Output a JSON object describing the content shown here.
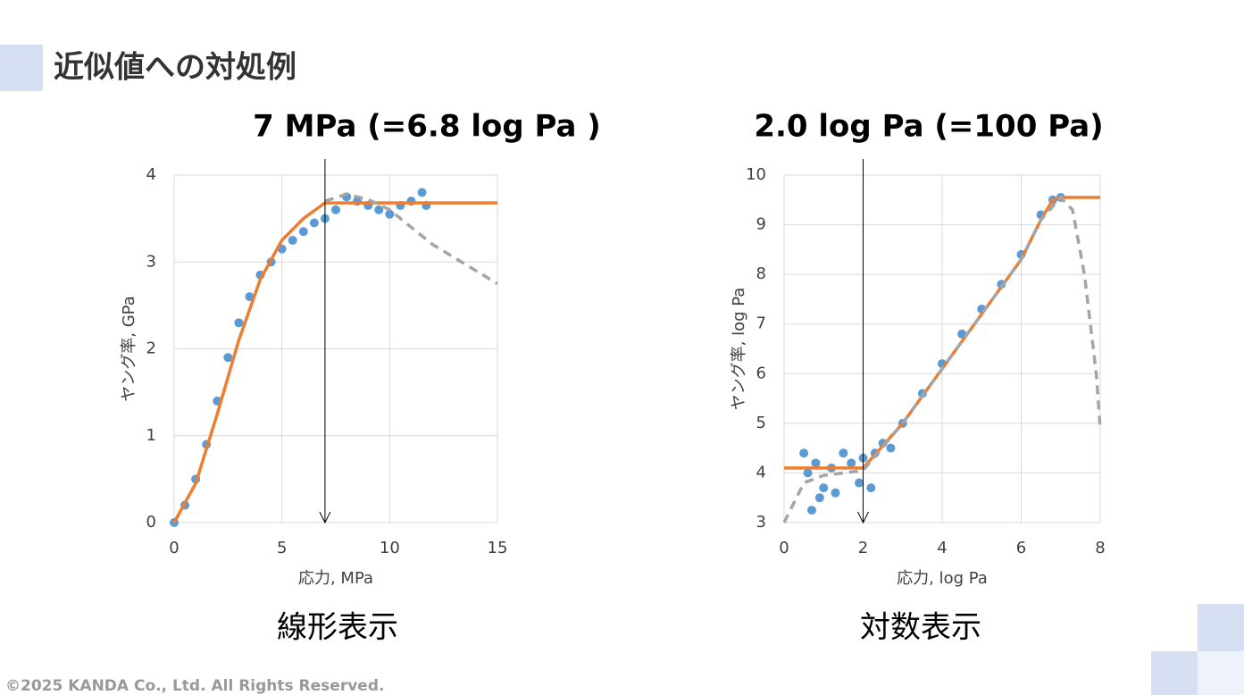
{
  "title": "近似値への対処例",
  "footer": "©2025 KANDA Co., Ltd. All Rights Reserved.",
  "chart_data": [
    {
      "type": "scatter",
      "title": "7 MPa (=6.8 log Pa )",
      "caption": "線形表示",
      "x_label": "応力, MPa",
      "y_label": "ヤング率, GPa",
      "xlim": [
        0,
        15
      ],
      "ylim": [
        0,
        4
      ],
      "xticks": [
        0,
        5,
        10,
        15
      ],
      "yticks": [
        0,
        1,
        2,
        3,
        4
      ],
      "grid": true,
      "vline_x": 7,
      "series": [
        {
          "style": "points",
          "color": "#5b9bd5",
          "x": [
            0,
            0.5,
            1,
            1.5,
            2,
            2.5,
            3,
            3.5,
            4,
            4.5,
            5,
            5.5,
            6,
            6.5,
            7,
            7.5,
            8,
            8.5,
            9,
            9.5,
            10,
            10.5,
            11,
            11.5,
            11.7
          ],
          "values": [
            0,
            0.2,
            0.5,
            0.9,
            1.4,
            1.9,
            2.3,
            2.6,
            2.85,
            3.0,
            3.15,
            3.25,
            3.35,
            3.45,
            3.5,
            3.6,
            3.75,
            3.7,
            3.65,
            3.6,
            3.55,
            3.65,
            3.7,
            3.8,
            3.65
          ]
        },
        {
          "style": "solid",
          "color": "#ed7d31",
          "x": [
            0,
            1,
            2,
            3,
            4,
            5,
            6,
            7,
            15
          ],
          "values": [
            0,
            0.45,
            1.25,
            2.1,
            2.8,
            3.25,
            3.5,
            3.68,
            3.68
          ]
        },
        {
          "style": "dashed",
          "color": "#a5a5a5",
          "x": [
            7,
            8,
            9,
            10,
            11,
            12,
            13,
            14,
            15
          ],
          "values": [
            3.7,
            3.78,
            3.72,
            3.6,
            3.4,
            3.2,
            3.05,
            2.9,
            2.75
          ]
        }
      ]
    },
    {
      "type": "scatter",
      "title": "2.0 log Pa (=100 Pa)",
      "caption": "対数表示",
      "x_label": "応力, log Pa",
      "y_label": "ヤング率, log Pa",
      "xlim": [
        0,
        8
      ],
      "ylim": [
        3,
        10
      ],
      "xticks": [
        0,
        2,
        4,
        6,
        8
      ],
      "yticks": [
        3,
        4,
        5,
        6,
        7,
        8,
        9,
        10
      ],
      "grid": true,
      "vline_x": 2,
      "series": [
        {
          "style": "points",
          "color": "#5b9bd5",
          "x": [
            0.5,
            0.6,
            0.7,
            0.8,
            0.9,
            1.0,
            1.2,
            1.3,
            1.5,
            1.7,
            1.9,
            2.0,
            2.2,
            2.3,
            2.5,
            2.7,
            3,
            3.5,
            4,
            4.5,
            5,
            5.5,
            6,
            6.5,
            6.8,
            7
          ],
          "values": [
            4.4,
            4.0,
            3.25,
            4.2,
            3.5,
            3.7,
            4.1,
            3.6,
            4.4,
            4.2,
            3.8,
            4.3,
            3.7,
            4.4,
            4.6,
            4.5,
            5.0,
            5.6,
            6.2,
            6.8,
            7.3,
            7.8,
            8.4,
            9.2,
            9.5,
            9.55
          ]
        },
        {
          "style": "solid",
          "color": "#ed7d31",
          "x": [
            0,
            2,
            3,
            4,
            5,
            6,
            6.5,
            6.8,
            7,
            8
          ],
          "values": [
            4.1,
            4.1,
            5.0,
            6.1,
            7.2,
            8.3,
            9.1,
            9.5,
            9.55,
            9.55
          ]
        },
        {
          "style": "dashed",
          "color": "#a5a5a5",
          "x": [
            0,
            0.5,
            1,
            1.5,
            2,
            3,
            4,
            5,
            6,
            6.5,
            7,
            7.3,
            7.6,
            7.9,
            8
          ],
          "values": [
            3,
            3.8,
            3.95,
            4.0,
            4.05,
            5.0,
            6.1,
            7.2,
            8.3,
            9.1,
            9.55,
            9.3,
            8.0,
            6.0,
            4.9
          ]
        }
      ]
    }
  ]
}
